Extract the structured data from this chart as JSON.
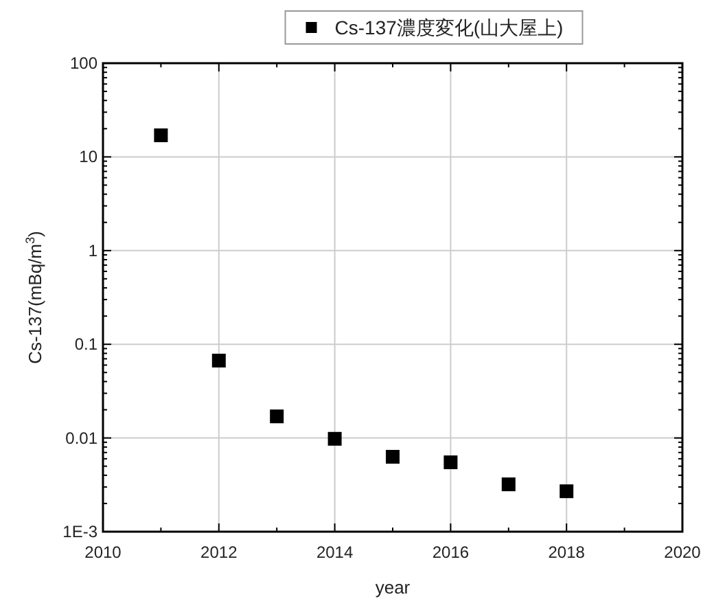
{
  "chart_data": {
    "type": "scatter",
    "xlabel": "year",
    "ylabel": "Cs-137(mBq/m$^{3}$)",
    "x": [
      2011,
      2012,
      2013,
      2014,
      2015,
      2016,
      2017,
      2018
    ],
    "series": [
      {
        "name": "Cs-137濃度変化(山大屋上)",
        "color": "#000000",
        "values": [
          17,
          0.067,
          0.017,
          0.0098,
          0.0063,
          0.0055,
          0.0032,
          0.0027
        ]
      }
    ],
    "xlim": [
      2010,
      2020
    ],
    "xticks": [
      2010,
      {
        "value": 2011,
        "label": null
      },
      2012,
      {
        "value": 2013,
        "label": null
      },
      2014,
      {
        "value": 2015,
        "label": null
      },
      2016,
      {
        "value": 2017,
        "label": null
      },
      2018,
      {
        "value": 2019,
        "label": null
      },
      2020
    ],
    "ylim": [
      0.001,
      100
    ],
    "yticks": [
      {
        "value": 0.001,
        "label": "1E-3"
      },
      0.01,
      0.1,
      1,
      10,
      100
    ],
    "log": "y",
    "grid": true,
    "legend": "top",
    "marker": "square"
  }
}
